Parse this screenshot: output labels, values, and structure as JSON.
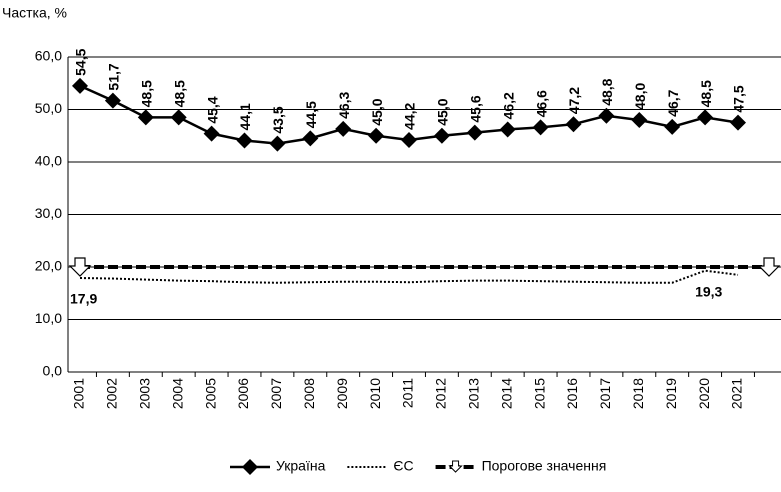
{
  "chart_data": {
    "type": "line",
    "y_axis_label": "Частка, %",
    "categories": [
      "2001",
      "2002",
      "2003",
      "2004",
      "2005",
      "2006",
      "2007",
      "2008",
      "2009",
      "2010",
      "2011",
      "2012",
      "2013",
      "2014",
      "2015",
      "2016",
      "2017",
      "2018",
      "2019",
      "2020",
      "2021"
    ],
    "series": [
      {
        "name": "Україна",
        "color": "#000000",
        "marker": "diamond",
        "line_style": "solid",
        "values": [
          54.5,
          51.7,
          48.5,
          48.5,
          45.4,
          44.1,
          43.5,
          44.5,
          46.3,
          45.0,
          44.2,
          45.0,
          45.6,
          46.2,
          46.6,
          47.2,
          48.8,
          48.0,
          46.7,
          48.5,
          47.5
        ],
        "value_labels": [
          "54,5",
          "51,7",
          "48,5",
          "48,5",
          "45,4",
          "44,1",
          "43,5",
          "44,5",
          "46,3",
          "45,0",
          "44,2",
          "45,0",
          "45,6",
          "46,2",
          "46,6",
          "47,2",
          "48,8",
          "48,0",
          "46,7",
          "48,5",
          "47,5"
        ]
      },
      {
        "name": "ЄС",
        "color": "#000000",
        "line_style": "dotted",
        "values": [
          17.9,
          17.8,
          17.6,
          17.4,
          17.3,
          17.1,
          17.0,
          17.1,
          17.2,
          17.2,
          17.1,
          17.3,
          17.4,
          17.4,
          17.3,
          17.2,
          17.1,
          17.0,
          17.0,
          19.3,
          18.5
        ],
        "value_labels": [
          "17,9",
          null,
          null,
          null,
          null,
          null,
          null,
          null,
          null,
          null,
          null,
          null,
          null,
          null,
          null,
          null,
          null,
          null,
          null,
          "19,3",
          null
        ]
      },
      {
        "name": "Порогове значення",
        "color": "#000000",
        "marker": "arrow-down",
        "line_style": "dashed",
        "values": [
          20,
          20,
          20,
          20,
          20,
          20,
          20,
          20,
          20,
          20,
          20,
          20,
          20,
          20,
          20,
          20,
          20,
          20,
          20,
          20,
          20
        ]
      }
    ],
    "ylim": [
      0,
      60
    ],
    "yticks": [
      {
        "value": 0,
        "label": "0,0"
      },
      {
        "value": 10,
        "label": "10,0"
      },
      {
        "value": 20,
        "label": "20,0"
      },
      {
        "value": 30,
        "label": "30,0"
      },
      {
        "value": 40,
        "label": "40,0"
      },
      {
        "value": 50,
        "label": "50,0"
      },
      {
        "value": 60,
        "label": "60,0"
      }
    ],
    "grid": true,
    "legend": "bottom"
  }
}
